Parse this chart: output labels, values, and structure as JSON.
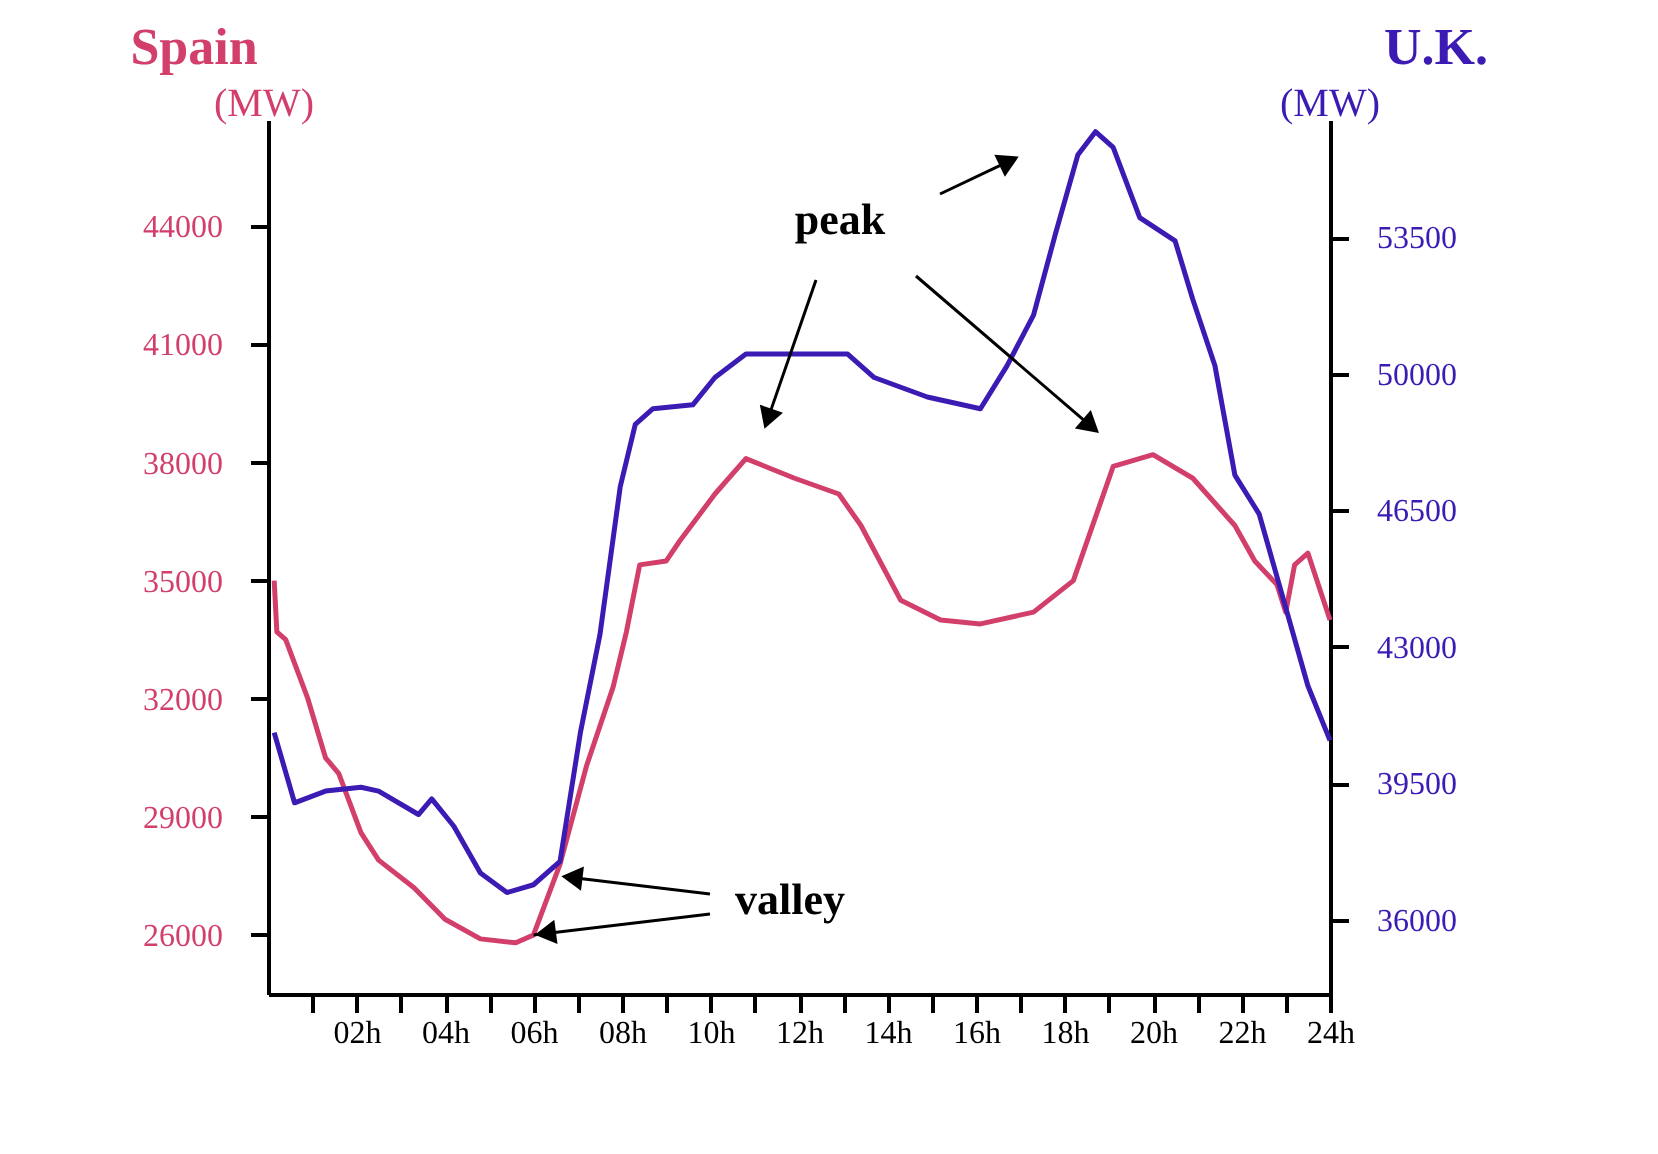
{
  "chart_data": {
    "type": "line",
    "ylabel": "(MW)",
    "y2label": "(MW)",
    "xlim": [
      0,
      24
    ],
    "xticks": [
      {
        "value": 1,
        "label": null
      },
      {
        "value": 2,
        "label": "02h"
      },
      {
        "value": 3,
        "label": null
      },
      {
        "value": 4,
        "label": "04h"
      },
      {
        "value": 5,
        "label": null
      },
      {
        "value": 6,
        "label": "06h"
      },
      {
        "value": 7,
        "label": null
      },
      {
        "value": 8,
        "label": "08h"
      },
      {
        "value": 9,
        "label": null
      },
      {
        "value": 10,
        "label": "10h"
      },
      {
        "value": 11,
        "label": null
      },
      {
        "value": 12,
        "label": "12h"
      },
      {
        "value": 13,
        "label": null
      },
      {
        "value": 14,
        "label": "14h"
      },
      {
        "value": 15,
        "label": null
      },
      {
        "value": 16,
        "label": "16h"
      },
      {
        "value": 17,
        "label": null
      },
      {
        "value": 18,
        "label": "18h"
      },
      {
        "value": 19,
        "label": null
      },
      {
        "value": 20,
        "label": "20h"
      },
      {
        "value": 21,
        "label": null
      },
      {
        "value": 22,
        "label": "22h"
      },
      {
        "value": 23,
        "label": null
      },
      {
        "value": 24,
        "label": "24h"
      }
    ],
    "ylim": [
      24500,
      46700
    ],
    "yticks": [
      26000,
      29000,
      32000,
      35000,
      38000,
      41000,
      44000
    ],
    "y2lim": [
      34100,
      56500
    ],
    "y2ticks": [
      36000,
      39500,
      43000,
      46500,
      50000,
      53500
    ],
    "grid": false,
    "legend": false,
    "series": [
      {
        "name": "Spain",
        "color": "#d23f6a",
        "x": [
          0.14,
          0.2,
          0.4,
          0.9,
          1.3,
          1.6,
          2.1,
          2.5,
          3.3,
          4.0,
          4.8,
          5.6,
          6.0,
          6.6,
          7.2,
          7.8,
          8.1,
          8.4,
          9.0,
          9.3,
          10.1,
          10.8,
          11.9,
          12.9,
          13.4,
          14.3,
          15.2,
          16.1,
          17.3,
          18.2,
          19.1,
          20.0,
          20.9,
          21.85,
          22.3,
          22.8,
          23.0,
          23.2,
          23.5,
          24.0
        ],
        "values": [
          35000,
          33700,
          33500,
          32000,
          30500,
          30100,
          28600,
          27900,
          27200,
          26400,
          25900,
          25800,
          26000,
          27800,
          30300,
          32300,
          33700,
          35400,
          35500,
          36000,
          37200,
          38100,
          37600,
          37200,
          36400,
          34500,
          34000,
          33900,
          34200,
          35000,
          37900,
          38200,
          37600,
          36400,
          35500,
          34900,
          34200,
          35400,
          35700,
          34000
        ]
      },
      {
        "name": "U.K.",
        "color": "#3b1bb3",
        "axis": "y2",
        "x": [
          0.14,
          0.6,
          1.3,
          2.1,
          2.5,
          3.4,
          3.7,
          4.2,
          4.8,
          5.4,
          6.0,
          6.6,
          7.06,
          7.5,
          7.96,
          8.3,
          8.7,
          9.6,
          10.1,
          10.8,
          13.1,
          13.7,
          14.9,
          16.1,
          16.7,
          17.3,
          17.8,
          18.3,
          18.7,
          19.1,
          19.7,
          20.5,
          20.9,
          21.4,
          21.85,
          22.4,
          22.9,
          23.5,
          24.0
        ],
        "values": [
          40800,
          39000,
          39300,
          39400,
          39300,
          38700,
          39100,
          38400,
          37200,
          36700,
          36900,
          37500,
          40800,
          43300,
          47100,
          48700,
          49100,
          49200,
          49900,
          50500,
          50500,
          49900,
          49400,
          49100,
          50200,
          51500,
          53600,
          55600,
          56200,
          55800,
          54000,
          53400,
          51900,
          50200,
          47400,
          46400,
          44400,
          42000,
          40600
        ]
      }
    ],
    "annotations": [
      "peak",
      {
        "text": "valley",
        "x": 6.0,
        "y": 26000
      }
    ]
  }
}
